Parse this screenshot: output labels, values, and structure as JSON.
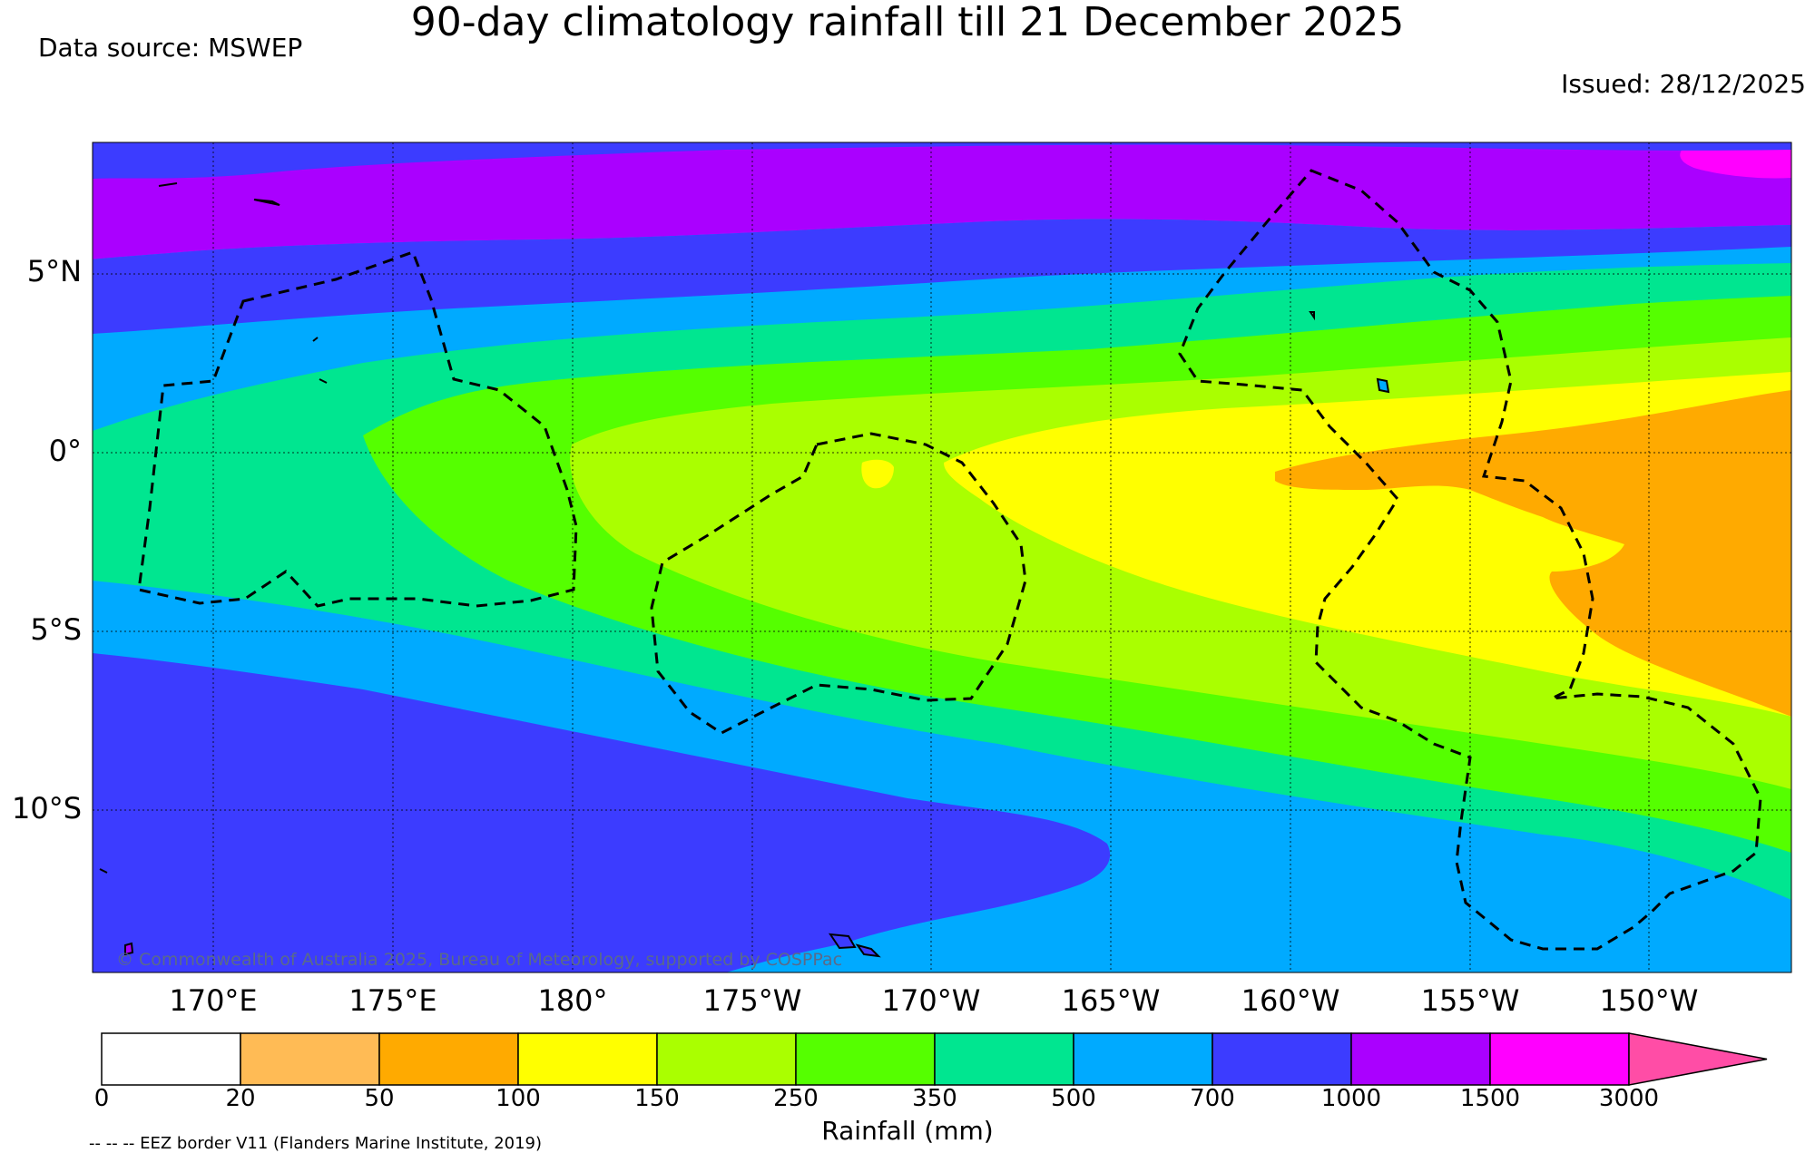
{
  "header": {
    "title": "90-day climatology rainfall till 21 December 2025",
    "data_source": "Data source: MSWEP",
    "issued": "Issued: 28/12/2025"
  },
  "map": {
    "lat_labels": [
      "5°N",
      "0°",
      "5°S",
      "10°S"
    ],
    "lon_labels": [
      "170°E",
      "175°E",
      "180°",
      "175°W",
      "170°W",
      "165°W",
      "160°W",
      "155°W",
      "150°W"
    ],
    "copyright": "© Commonwealth of Australia 2025, Bureau of Meteorology, supported by COSPPac",
    "eez_border_style": "dashed",
    "land_outline_color": "#000000"
  },
  "colorbar": {
    "label": "Rainfall (mm)",
    "ticks": [
      "0",
      "20",
      "50",
      "100",
      "150",
      "250",
      "350",
      "500",
      "700",
      "1000",
      "1500",
      "3000"
    ],
    "colors": [
      "#ffffff",
      "#ffbb55",
      "#ffaa00",
      "#ffff00",
      "#aaff00",
      "#55ff00",
      "#00e690",
      "#00aaff",
      "#3c3cff",
      "#aa00ff",
      "#ff00ff",
      "#ff4da6"
    ],
    "extend": "max"
  },
  "footer": {
    "eez_note": "-- -- -- EEZ border V11 (Flanders Marine Institute, 2019)"
  }
}
